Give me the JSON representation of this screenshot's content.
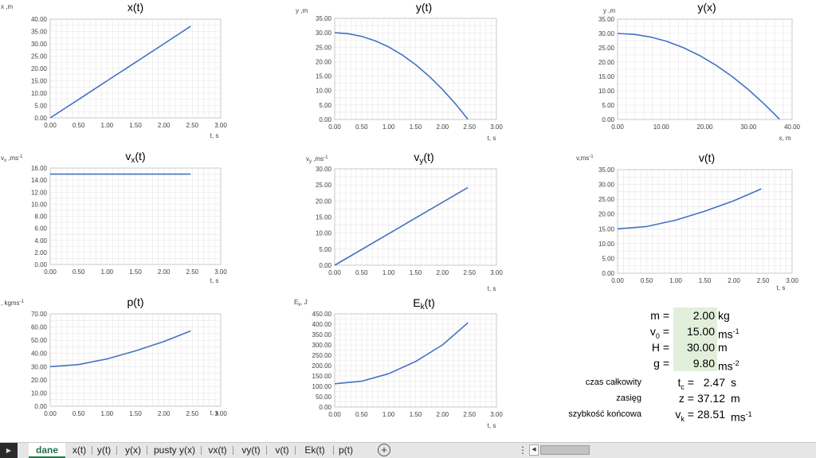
{
  "chart_data": [
    {
      "type": "line",
      "title": "x(t)",
      "ylabel": "x ,m",
      "xlabel": "t, s",
      "xlim": [
        0,
        3
      ],
      "xstep": 0.5,
      "ylim": [
        0,
        40
      ],
      "ystep": 5,
      "x": [
        0,
        0.5,
        1,
        1.5,
        2,
        2.47
      ],
      "y": [
        0,
        7.5,
        15,
        22.5,
        30,
        37.12
      ]
    },
    {
      "type": "line",
      "title": "y(t)",
      "ylabel": "y ,m",
      "xlabel": "t, s",
      "xlim": [
        0,
        3
      ],
      "xstep": 0.5,
      "ylim": [
        0,
        35
      ],
      "ystep": 5,
      "x": [
        0,
        0.25,
        0.5,
        0.75,
        1,
        1.25,
        1.5,
        1.75,
        2,
        2.25,
        2.47
      ],
      "y": [
        30,
        29.69,
        28.78,
        27.24,
        25.1,
        22.34,
        18.98,
        15,
        10.4,
        5.19,
        0.11
      ]
    },
    {
      "type": "line",
      "title": "y(x)",
      "ylabel": "y ,m",
      "xlabel": "x, m",
      "xlim": [
        0,
        40
      ],
      "xstep": 10,
      "ylim": [
        0,
        35
      ],
      "ystep": 5,
      "x": [
        0,
        3.75,
        7.5,
        11.25,
        15,
        18.75,
        22.5,
        26.25,
        30,
        33.75,
        37.12
      ],
      "y": [
        30,
        29.69,
        28.78,
        27.24,
        25.1,
        22.34,
        18.98,
        15,
        10.4,
        5.19,
        0.11
      ]
    },
    {
      "type": "line",
      "title": "vx(t)",
      "ylabel": "vx ,ms-1",
      "xlabel": "t, s",
      "xlim": [
        0,
        3
      ],
      "xstep": 0.5,
      "ylim": [
        0,
        16
      ],
      "ystep": 2,
      "x": [
        0,
        2.47
      ],
      "y": [
        15,
        15
      ]
    },
    {
      "type": "line",
      "title": "vy(t)",
      "ylabel": "vy ,ms-1",
      "xlabel": "t, s",
      "xlim": [
        0,
        3
      ],
      "xstep": 0.5,
      "ylim": [
        0,
        30
      ],
      "ystep": 5,
      "x": [
        0,
        2.47
      ],
      "y": [
        0,
        24.21
      ]
    },
    {
      "type": "line",
      "title": "v(t)",
      "ylabel": "v,ms-1",
      "xlabel": "t, s",
      "xlim": [
        0,
        3
      ],
      "xstep": 0.5,
      "ylim": [
        0,
        35
      ],
      "ystep": 5,
      "x": [
        0,
        0.5,
        1,
        1.5,
        2,
        2.47
      ],
      "y": [
        15,
        15.78,
        17.92,
        20.96,
        24.5,
        28.51
      ]
    },
    {
      "type": "line",
      "title": "p(t)",
      "ylabel": ", kgms-1",
      "xlabel": "t, s",
      "xlim": [
        0,
        3
      ],
      "xstep": 0.5,
      "ylim": [
        0,
        70
      ],
      "ystep": 10,
      "x": [
        0,
        0.5,
        1,
        1.5,
        2,
        2.47
      ],
      "y": [
        30,
        31.56,
        35.84,
        41.92,
        49,
        57.02
      ]
    },
    {
      "type": "line",
      "title": "Ek(t)",
      "ylabel": "Ek, J",
      "xlabel": "t, s",
      "xlim": [
        0,
        3
      ],
      "xstep": 0.5,
      "ylim": [
        0,
        450
      ],
      "ystep": 50,
      "x": [
        0,
        0.5,
        1,
        1.5,
        2,
        2.47
      ],
      "y": [
        112.5,
        124.5,
        160.6,
        219.7,
        300.1,
        406.5
      ]
    }
  ],
  "params": {
    "rows": [
      {
        "label": "m =",
        "value": "2.00",
        "unit": "kg"
      },
      {
        "label": "v0 =",
        "value": "15.00",
        "unit": "ms-1"
      },
      {
        "label": "H =",
        "value": "30.00",
        "unit": "m"
      },
      {
        "label": "g =",
        "value": "9.80",
        "unit": "ms-2"
      }
    ],
    "results": [
      {
        "label": "czas całkowity",
        "symbol": "tc =",
        "value": "2.47",
        "unit": "s"
      },
      {
        "label": "zasięg",
        "symbol": "z =",
        "value": "37.12",
        "unit": "m"
      },
      {
        "label": "szybkość końcowa",
        "symbol": "vk =",
        "value": "28.51",
        "unit": "ms-1"
      }
    ]
  },
  "tabs": [
    "dane",
    "x(t)",
    "y(t)",
    "y(x)",
    "pusty y(x)",
    "vx(t)",
    "vy(t)",
    "v(t)",
    "Ek(t)",
    "p(t)"
  ],
  "active_tab": "dane",
  "colors": {
    "line": "#4472c4",
    "grid": "#e6e6e6",
    "axis": "#bfbfbf",
    "input_fill": "#e2efda",
    "accent": "#217346"
  }
}
